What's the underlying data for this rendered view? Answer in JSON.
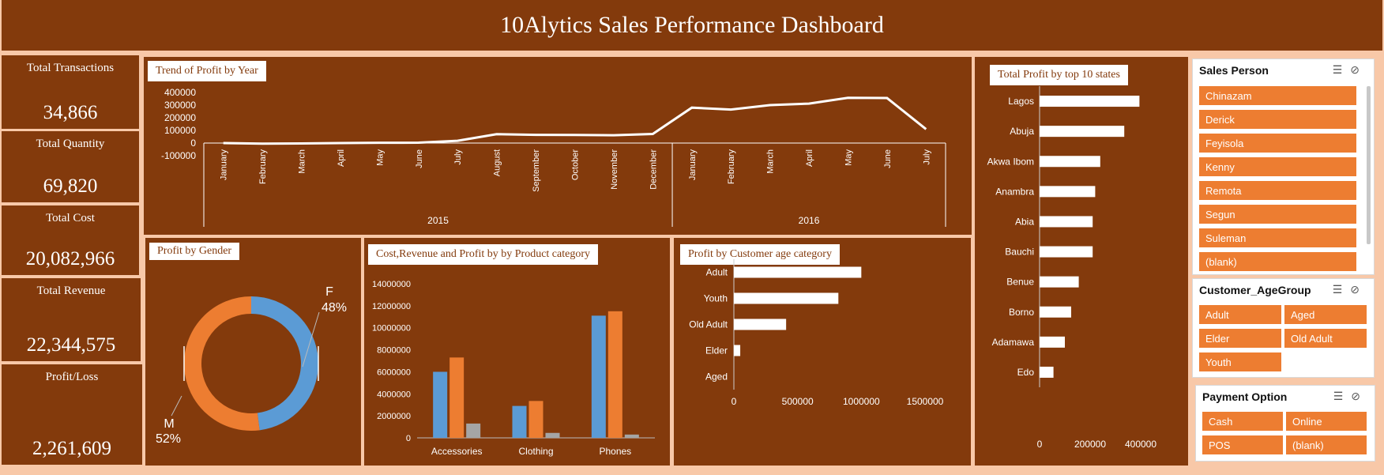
{
  "title": "10Alytics Sales Performance Dashboard",
  "kpis": [
    {
      "label": "Total Transactions",
      "value": "34,866"
    },
    {
      "label": "Total Quantity",
      "value": "69,820"
    },
    {
      "label": "Total Cost",
      "value": "20,082,966"
    },
    {
      "label": "Total Revenue",
      "value": "22,344,575"
    },
    {
      "label": "Profit/Loss",
      "value": "2,261,609"
    }
  ],
  "colors": {
    "panel": "#833A0C",
    "background": "#F8C8A8",
    "orange": "#ED7D31",
    "blue": "#5B9BD5",
    "gray": "#A5A5A5",
    "line": "#FFFFFF"
  },
  "chart_data": [
    {
      "type": "line",
      "title": "Trend of Profit by Year",
      "x": [
        "January",
        "February",
        "March",
        "April",
        "May",
        "June",
        "July",
        "August",
        "September",
        "October",
        "November",
        "December",
        "January",
        "February",
        "March",
        "April",
        "May",
        "June",
        "July"
      ],
      "groups": [
        {
          "label": "2015",
          "count": 12
        },
        {
          "label": "2016",
          "count": 7
        }
      ],
      "values": [
        0,
        -5000,
        -3000,
        0,
        2000,
        3000,
        18000,
        70000,
        65000,
        64000,
        62000,
        72000,
        280000,
        265000,
        300000,
        312000,
        358000,
        356000,
        110000
      ],
      "yticks": [
        "400000",
        "300000",
        "200000",
        "100000",
        "0",
        "-100000"
      ],
      "ylim": [
        -100000,
        400000
      ]
    },
    {
      "type": "pie",
      "title": "Profit by Gender",
      "slices": [
        {
          "label": "F",
          "value": 48,
          "pct": "48%"
        },
        {
          "label": "M",
          "value": 52,
          "pct": "52%"
        }
      ]
    },
    {
      "type": "bar",
      "title": "Cost,Revenue and Profit by by Product category",
      "categories": [
        "Accessories",
        "Clothing",
        "Phones"
      ],
      "series": [
        {
          "values": [
            6000000,
            2900000,
            11100000
          ]
        },
        {
          "values": [
            7300000,
            3350000,
            11500000
          ]
        },
        {
          "values": [
            1300000,
            450000,
            300000
          ]
        }
      ],
      "yticks": [
        "14000000",
        "12000000",
        "10000000",
        "8000000",
        "6000000",
        "4000000",
        "2000000",
        "0"
      ],
      "ylim": [
        0,
        14000000
      ]
    },
    {
      "type": "bar",
      "title": "Profit by Customer age category",
      "categories": [
        "Adult",
        "Youth",
        "Old Adult",
        "Elder",
        "Aged"
      ],
      "values": [
        1000000,
        820000,
        410000,
        50000,
        0
      ],
      "xticks": [
        "0",
        "500000",
        "1000000",
        "1500000"
      ],
      "xlim": [
        0,
        1500000
      ]
    },
    {
      "type": "bar",
      "title": "Total Profit by top 10 states",
      "categories": [
        "Lagos",
        "Abuja",
        "Akwa Ibom",
        "Anambra",
        "Abia",
        "Bauchi",
        "Benue",
        "Borno",
        "Adamawa",
        "Edo"
      ],
      "values": [
        395000,
        335000,
        240000,
        220000,
        210000,
        210000,
        155000,
        125000,
        100000,
        55000
      ],
      "xticks": [
        "0",
        "200000",
        "400000"
      ],
      "xlim": [
        0,
        400000
      ]
    }
  ],
  "slicers": {
    "sales_person": {
      "title": "Sales Person",
      "items": [
        "Chinazam",
        "Derick",
        "Feyisola",
        "Kenny",
        "Remota",
        "Segun",
        "Suleman",
        "(blank)"
      ]
    },
    "age_group": {
      "title": "Customer_AgeGroup",
      "items": [
        "Adult",
        "Aged",
        "Elder",
        "Old Adult",
        "Youth"
      ]
    },
    "payment": {
      "title": "Payment Option",
      "items": [
        "Cash",
        "Online",
        "POS",
        "(blank)"
      ]
    },
    "icons": [
      "multi-select-icon",
      "clear-filter-icon"
    ],
    "tools": "☰ ⊘"
  }
}
